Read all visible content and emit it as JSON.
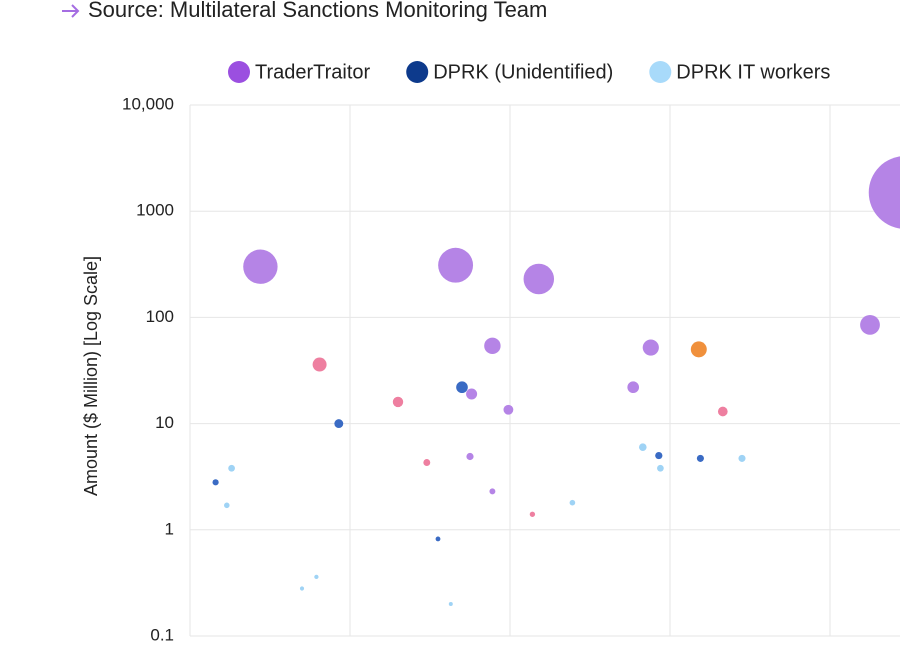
{
  "source": "Source: Multilateral Sanctions Monitoring Team",
  "chart_data": {
    "type": "scatter",
    "y_label": "Amount ($ Million) [Log Scale]",
    "log_y": true,
    "grid": true,
    "legend": "top-right",
    "xlim": [
      0,
      4.4375
    ],
    "xticks": [
      0,
      1,
      2,
      3,
      4
    ],
    "ylim": [
      0.1,
      10000
    ],
    "yticks": [
      0.1,
      1,
      10,
      100,
      1000,
      {
        "value": 10000,
        "label": "10,000"
      }
    ],
    "series": [
      {
        "name": "TraderTraitor",
        "color": "#b584e6",
        "legend_color": "#9b4fe0",
        "x": [
          0.44,
          1.66,
          2.18,
          1.89,
          1.76,
          1.99,
          2.88,
          2.77,
          4.25,
          4.47,
          1.75,
          1.89
        ],
        "values": [
          300,
          310,
          230,
          54,
          19,
          13.5,
          52,
          22,
          85,
          1500,
          4.9,
          2.3
        ]
      },
      {
        "name": "DPRK (Unidentified)",
        "color": "#3a6bc4",
        "legend_color": "#0d3a8c",
        "x": [
          0.93,
          1.7,
          0.16,
          1.55,
          2.93,
          3.19
        ],
        "values": [
          10,
          22,
          2.8,
          0.82,
          5,
          4.7
        ]
      },
      {
        "name": "DPRK IT workers",
        "color": "#9fd3f5",
        "legend_color": "#a8dafa",
        "x": [
          0.26,
          0.23,
          0.79,
          0.7,
          1.63,
          2.39,
          2.83,
          2.94,
          3.45
        ],
        "values": [
          3.8,
          1.7,
          0.36,
          0.28,
          0.2,
          1.8,
          6,
          3.8,
          4.7
        ]
      },
      {
        "color": "#ee7fa0",
        "x": [
          0.81,
          1.3,
          1.48,
          2.14,
          3.33
        ],
        "values": [
          36,
          16,
          4.3,
          1.4,
          13
        ]
      },
      {
        "color": "#f0903c",
        "x": [
          3.18
        ],
        "values": [
          50
        ]
      }
    ]
  }
}
